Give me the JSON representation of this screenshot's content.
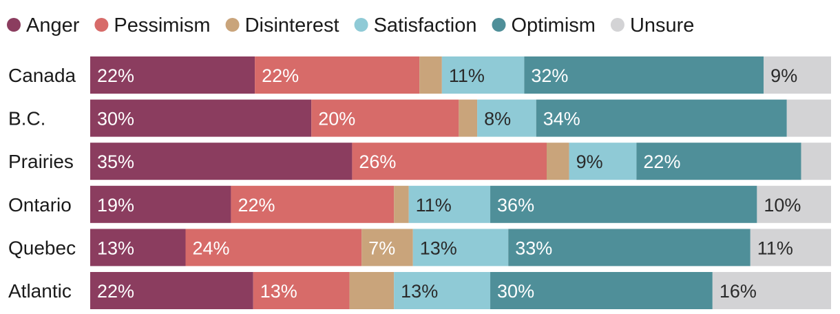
{
  "chart_data": {
    "type": "bar",
    "orientation": "horizontal",
    "stacked": true,
    "title": "",
    "xlabel": "",
    "ylabel": "",
    "categories": [
      "Canada",
      "B.C.",
      "Prairies",
      "Ontario",
      "Quebec",
      "Atlantic"
    ],
    "series": [
      {
        "name": "Anger",
        "color": "#8b3d5f",
        "values": [
          22,
          30,
          35,
          19,
          13,
          22
        ],
        "label_color": "#ffffff"
      },
      {
        "name": "Pessimism",
        "color": "#d76b69",
        "values": [
          22,
          20,
          26,
          22,
          24,
          13
        ],
        "label_color": "#ffffff"
      },
      {
        "name": "Disinterest",
        "color": "#c9a47b",
        "values": [
          3,
          2.5,
          3,
          2,
          7,
          6
        ],
        "label_color": "#ffffff"
      },
      {
        "name": "Satisfaction",
        "color": "#8fcad6",
        "values": [
          11,
          8,
          9,
          11,
          13,
          13
        ],
        "label_color": "#2a2a2a"
      },
      {
        "name": "Optimism",
        "color": "#4f8f99",
        "values": [
          32,
          34,
          22,
          36,
          33,
          30
        ],
        "label_color": "#ffffff"
      },
      {
        "name": "Unsure",
        "color": "#d3d3d5",
        "values": [
          9,
          6,
          4,
          10,
          11,
          16
        ],
        "label_color": "#2a2a2a"
      }
    ],
    "data_labels": [
      [
        "22%",
        "22%",
        "",
        "11%",
        "32%",
        "9%"
      ],
      [
        "30%",
        "20%",
        "",
        "8%",
        "34%",
        ""
      ],
      [
        "35%",
        "26%",
        "",
        "9%",
        "22%",
        ""
      ],
      [
        "19%",
        "22%",
        "",
        "11%",
        "36%",
        "10%"
      ],
      [
        "13%",
        "24%",
        "7%",
        "13%",
        "33%",
        "11%"
      ],
      [
        "22%",
        "13%",
        "",
        "13%",
        "30%",
        "16%"
      ]
    ],
    "legend_position": "top-left",
    "xlim": [
      0,
      100
    ],
    "grid": false
  }
}
